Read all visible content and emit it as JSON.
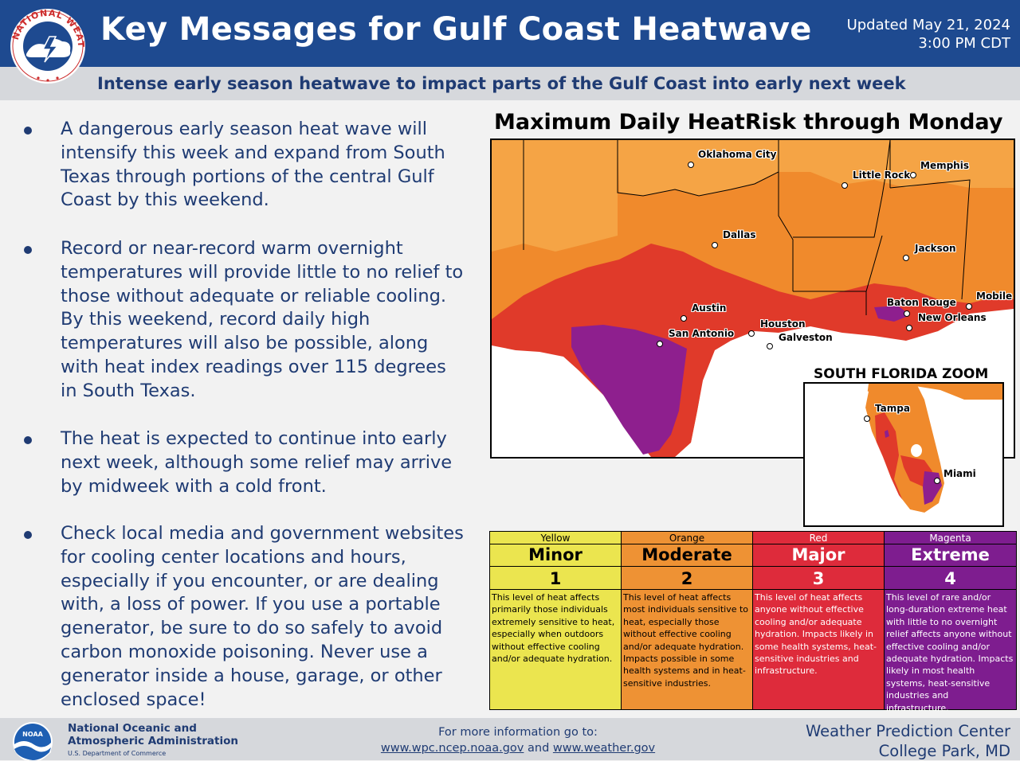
{
  "header": {
    "title": "Key Messages for Gulf Coast Heatwave",
    "updated_line1": "Updated May 21, 2024",
    "updated_line2": "3:00 PM CDT",
    "logo_text": "NATIONAL WEATHER SERVICE"
  },
  "subtitle": "Intense early season heatwave to impact parts of the Gulf Coast into early next week",
  "bullets": [
    "A dangerous early season heat wave will intensify this week and expand from South Texas through portions of the central Gulf Coast by this weekend.",
    "Record or near-record warm overnight temperatures will provide little to no relief to those without adequate or reliable cooling. By this weekend, record daily high temperatures will also be possible, along with heat index readings over 115 degrees in South Texas.",
    "The heat is expected to continue into early next week, although some relief may arrive by midweek with a cold front.",
    "Check local media and government websites for cooling center locations and hours, especially if you encounter, or are dealing with, a loss of power. If you use a portable generator, be sure to do so safely to avoid carbon monoxide poisoning. Never use a generator inside a house, garage, or other enclosed space!"
  ],
  "map": {
    "title": "Maximum Daily HeatRisk through Monday",
    "zoom_label": "SOUTH FLORIDA ZOOM",
    "cities": {
      "oklahoma_city": "Oklahoma City",
      "little_rock": "Little Rock",
      "memphis": "Memphis",
      "dallas": "Dallas",
      "jackson": "Jackson",
      "austin": "Austin",
      "san_antonio": "San Antonio",
      "houston": "Houston",
      "galveston": "Galveston",
      "baton_rouge": "Baton Rouge",
      "new_orleans": "New Orleans",
      "mobile": "Mobile",
      "tampa": "Tampa",
      "miami": "Miami"
    },
    "colors": {
      "minor": "#f2e94e",
      "moderate": "#f0902a",
      "major": "#e0302e",
      "extreme": "#8c1f8f",
      "light_orange": "#f39a3a"
    }
  },
  "legend": [
    {
      "name": "Yellow",
      "level": "Minor",
      "num": "1",
      "color": "#ebe54f",
      "text_color": "#000000",
      "desc": "This level of heat affects primarily those individuals extremely sensitive to heat, especially when outdoors without effective cooling and/or adequate hydration."
    },
    {
      "name": "Orange",
      "level": "Moderate",
      "num": "2",
      "color": "#ee9234",
      "text_color": "#000000",
      "desc": "This level of heat affects most individuals sensitive to heat, especially those without effective cooling and/or adequate hydration. Impacts possible in some health systems and in heat-sensitive industries."
    },
    {
      "name": "Red",
      "level": "Major",
      "num": "3",
      "color": "#de2b3b",
      "text_color": "#ffffff",
      "desc": "This level of heat affects anyone without effective cooling and/or adequate hydration. Impacts likely in some health systems, heat-sensitive industries and infrastructure."
    },
    {
      "name": "Magenta",
      "level": "Extreme",
      "num": "4",
      "color": "#7e1d8f",
      "text_color": "#ffffff",
      "desc": "This level of rare and/or long-duration extreme heat with little to no overnight relief affects anyone without effective cooling and/or adequate hydration. Impacts likely in most health systems, heat-sensitive industries and infrastructure."
    }
  ],
  "footer": {
    "noaa_line1": "National Oceanic and",
    "noaa_line2": "Atmospheric Administration",
    "noaa_dept": "U.S. Department of Commerce",
    "noaa_logo_text": "NOAA",
    "more_info": "For more information go to:",
    "link1": "www.wpc.ncep.noaa.gov",
    "and_text": "and",
    "link2": "www.weather.gov",
    "wpc_line1": "Weather Prediction Center",
    "wpc_line2": "College Park, MD"
  }
}
